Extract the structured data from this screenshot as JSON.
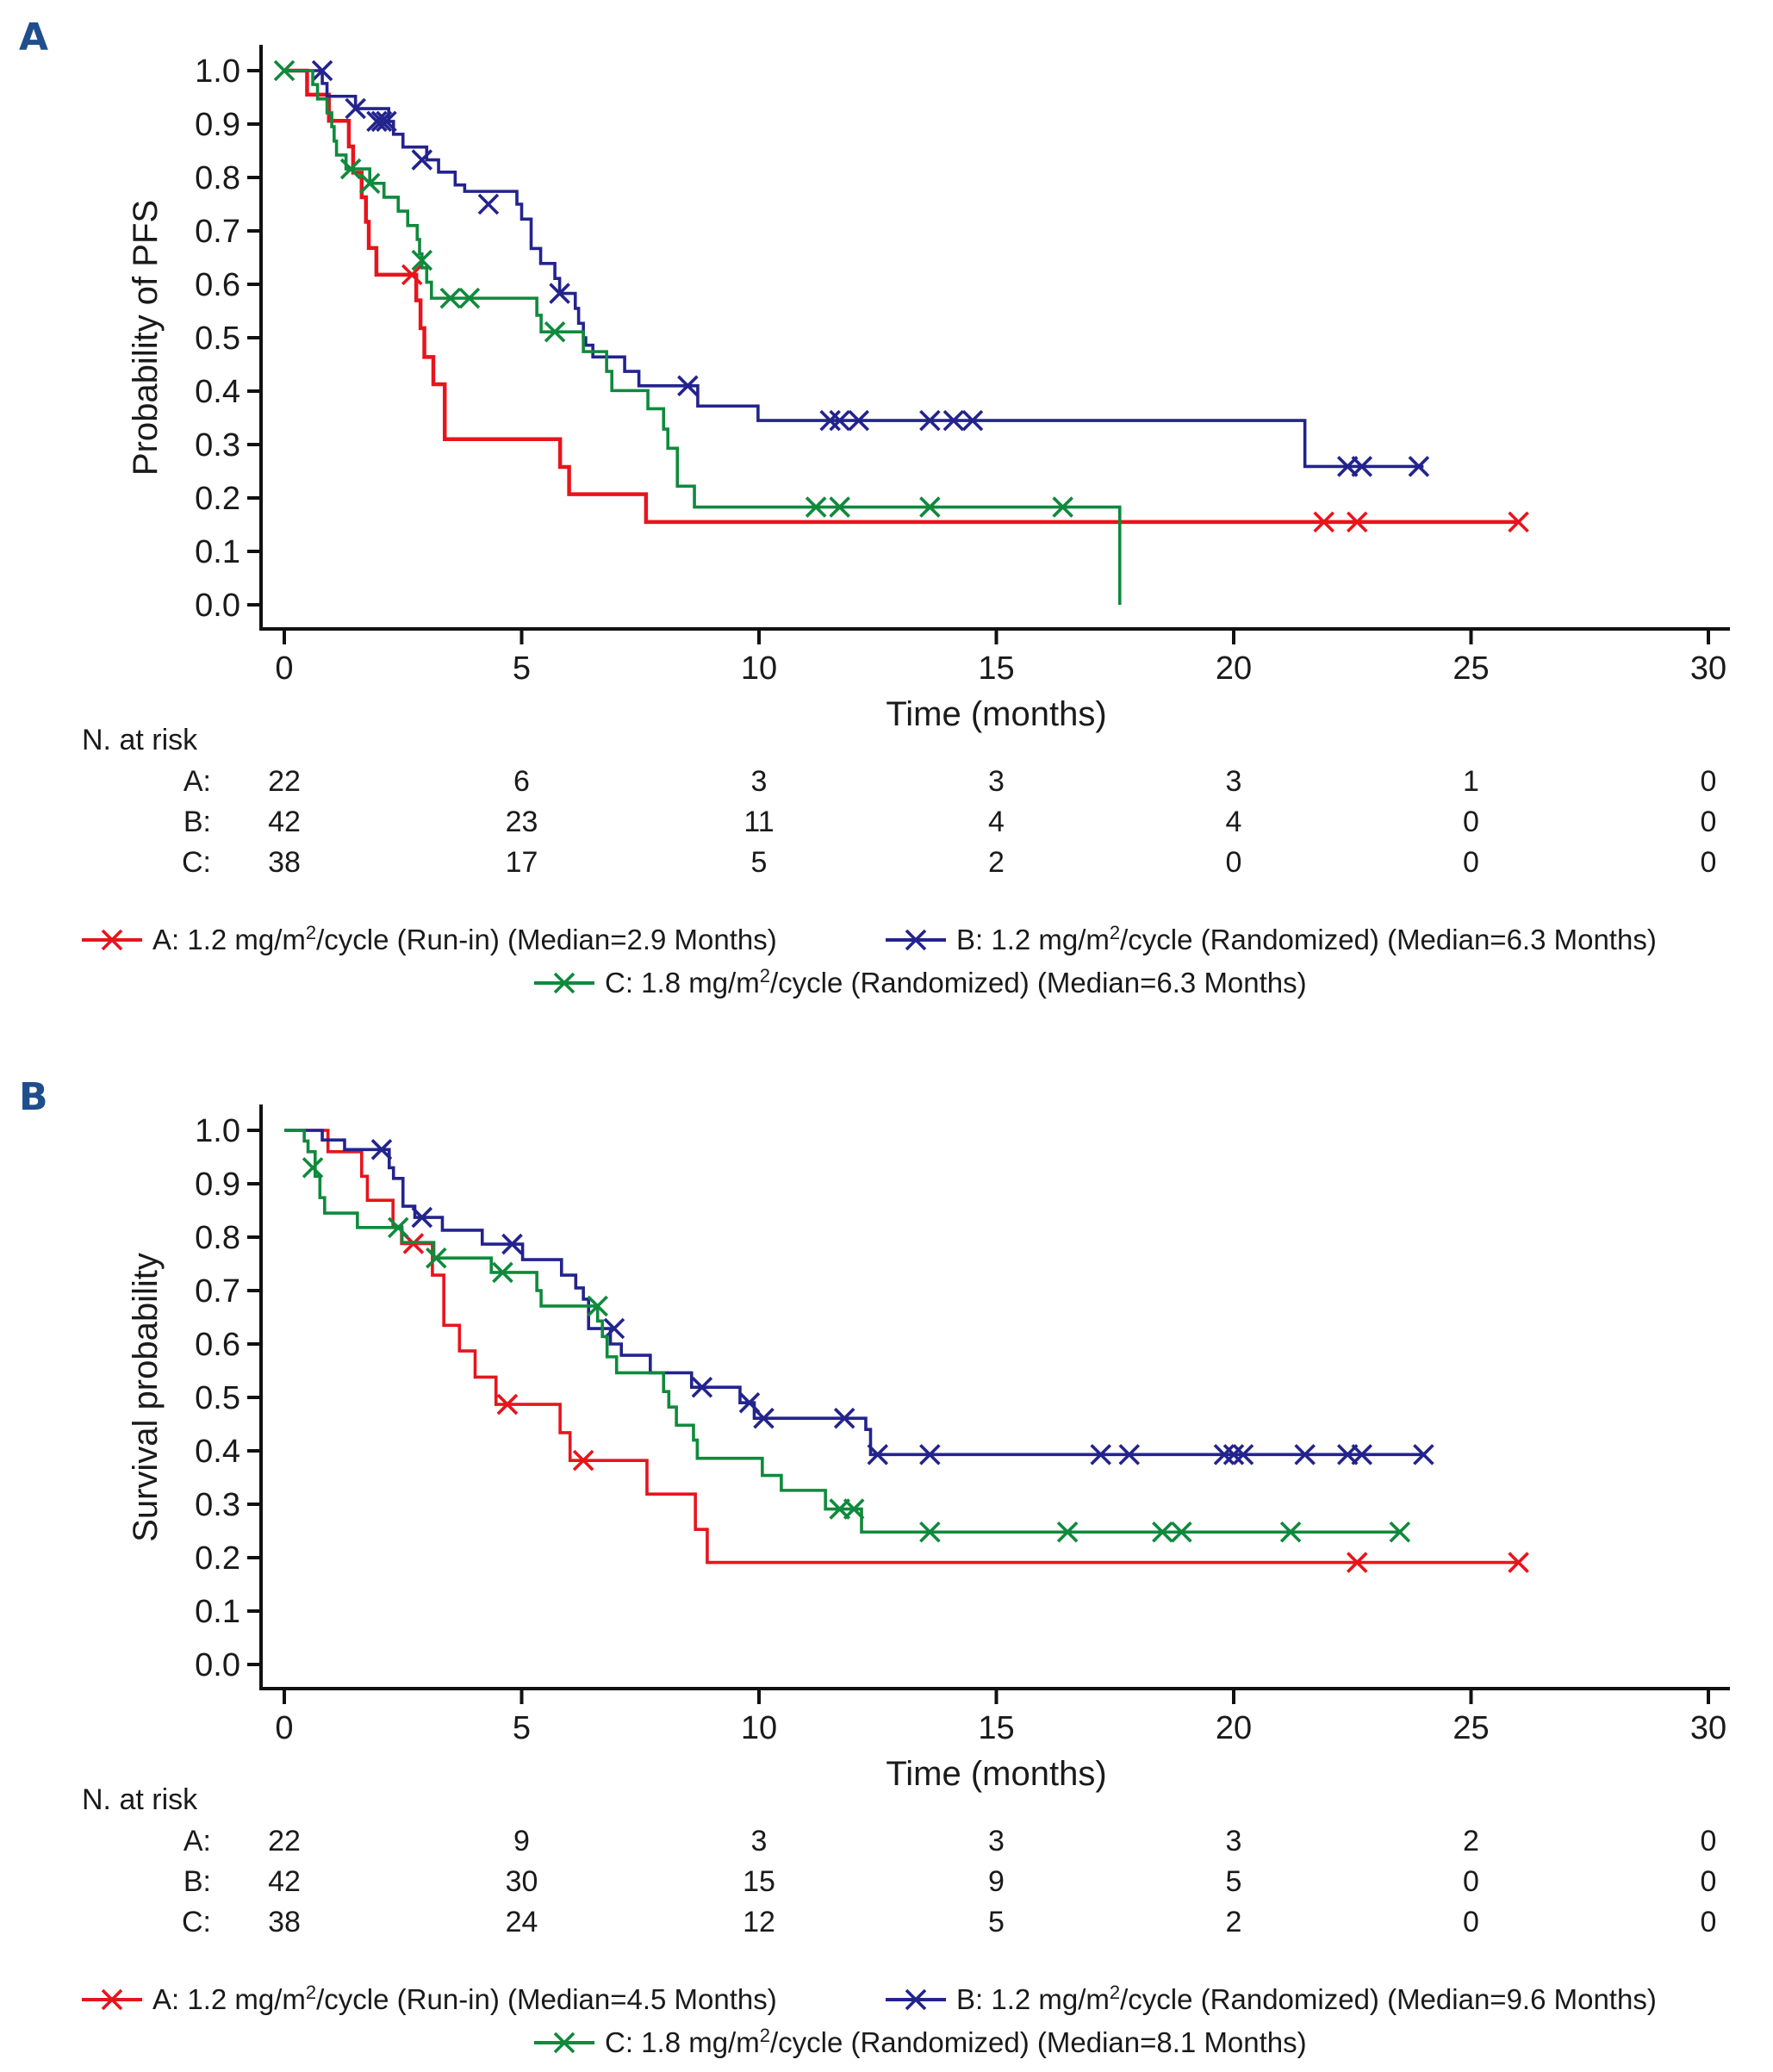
{
  "figure": {
    "panels": [
      "A",
      "B"
    ]
  },
  "chart_data": [
    {
      "id": "A",
      "panel_label": "A",
      "type": "line",
      "subtype": "kaplan-meier step",
      "title": "",
      "xlabel": "Time (months)",
      "ylabel": "Probability of PFS",
      "xlim": [
        0,
        30
      ],
      "ylim": [
        0.0,
        1.0
      ],
      "xticks": [
        "0",
        "5",
        "10",
        "15",
        "20",
        "25",
        "30"
      ],
      "yticks": [
        "0.0",
        "0.1",
        "0.2",
        "0.3",
        "0.4",
        "0.5",
        "0.6",
        "0.7",
        "0.8",
        "0.9",
        "1.0"
      ],
      "grid": false,
      "legend_position": "bottom",
      "series": [
        {
          "key": "A",
          "name": "A: 1.2 mg/m²/cycle (Run-in) (Median=2.9 Months)",
          "legend_prefix": "A: 1.2 mg/m",
          "legend_sup": "2",
          "legend_suffix": "/cycle (Run-in) (Median=2.9 Months)",
          "color": "#e8141c",
          "steps": [
            [
              0,
              1.0
            ],
            [
              0.48,
              0.955
            ],
            [
              0.94,
              0.906
            ],
            [
              1.36,
              0.858
            ],
            [
              1.45,
              0.809
            ],
            [
              1.63,
              0.763
            ],
            [
              1.72,
              0.717
            ],
            [
              1.78,
              0.668
            ],
            [
              1.94,
              0.618
            ],
            [
              2.78,
              0.57
            ],
            [
              2.87,
              0.518
            ],
            [
              2.95,
              0.464
            ],
            [
              3.14,
              0.413
            ],
            [
              3.38,
              0.31
            ],
            [
              5.81,
              0.258
            ],
            [
              6.0,
              0.207
            ],
            [
              7.62,
              0.155
            ]
          ],
          "end": 26.0,
          "censors": [
            [
              2.69,
              0.618
            ],
            [
              21.9,
              0.155
            ],
            [
              22.6,
              0.155
            ],
            [
              26.0,
              0.155
            ]
          ]
        },
        {
          "key": "B",
          "name": "B: 1.2 mg/m²/cycle (Randomized) (Median=6.3 Months)",
          "legend_prefix": "B: 1.2 mg/m",
          "legend_sup": "2",
          "legend_suffix": "/cycle (Randomized) (Median=6.3 Months)",
          "color": "#23238e",
          "steps": [
            [
              0,
              1.0
            ],
            [
              0.8,
              0.976
            ],
            [
              0.9,
              0.952
            ],
            [
              1.5,
              0.929
            ],
            [
              2.2,
              0.905
            ],
            [
              2.3,
              0.881
            ],
            [
              2.5,
              0.857
            ],
            [
              3.0,
              0.833
            ],
            [
              3.25,
              0.81
            ],
            [
              3.6,
              0.786
            ],
            [
              3.8,
              0.774
            ],
            [
              4.9,
              0.75
            ],
            [
              5.0,
              0.722
            ],
            [
              5.2,
              0.667
            ],
            [
              5.4,
              0.639
            ],
            [
              5.7,
              0.611
            ],
            [
              5.8,
              0.583
            ],
            [
              6.13,
              0.555
            ],
            [
              6.2,
              0.527
            ],
            [
              6.3,
              0.5
            ],
            [
              6.35,
              0.486
            ],
            [
              6.5,
              0.464
            ],
            [
              7.17,
              0.437
            ],
            [
              7.47,
              0.41
            ],
            [
              8.71,
              0.372
            ],
            [
              9.98,
              0.345
            ],
            [
              21.5,
              0.259
            ]
          ],
          "end": 24.0,
          "censors": [
            [
              0.8,
              1.0
            ],
            [
              1.5,
              0.929
            ],
            [
              1.95,
              0.905
            ],
            [
              2.05,
              0.905
            ],
            [
              2.15,
              0.905
            ],
            [
              2.9,
              0.833
            ],
            [
              4.3,
              0.75
            ],
            [
              5.8,
              0.583
            ],
            [
              8.5,
              0.41
            ],
            [
              11.5,
              0.345
            ],
            [
              11.7,
              0.345
            ],
            [
              12.1,
              0.345
            ],
            [
              13.6,
              0.345
            ],
            [
              14.1,
              0.345
            ],
            [
              14.5,
              0.345
            ],
            [
              22.4,
              0.259
            ],
            [
              22.7,
              0.259
            ],
            [
              23.9,
              0.259
            ]
          ]
        },
        {
          "key": "C",
          "name": "C: 1.8 mg/m²/cycle (Randomized) (Median=6.3 Months)",
          "legend_prefix": "C: 1.8 mg/m",
          "legend_sup": "2",
          "legend_suffix": "/cycle (Randomized) (Median=6.3 Months)",
          "color": "#0f8a3c",
          "steps": [
            [
              0,
              1.0
            ],
            [
              0.6,
              0.974
            ],
            [
              0.7,
              0.947
            ],
            [
              0.9,
              0.921
            ],
            [
              1.0,
              0.895
            ],
            [
              1.05,
              0.868
            ],
            [
              1.1,
              0.842
            ],
            [
              1.3,
              0.816
            ],
            [
              1.8,
              0.789
            ],
            [
              2.1,
              0.763
            ],
            [
              2.4,
              0.737
            ],
            [
              2.6,
              0.71
            ],
            [
              2.8,
              0.684
            ],
            [
              2.85,
              0.657
            ],
            [
              2.9,
              0.631
            ],
            [
              3.0,
              0.604
            ],
            [
              3.1,
              0.574
            ],
            [
              5.32,
              0.542
            ],
            [
              5.41,
              0.511
            ],
            [
              6.3,
              0.474
            ],
            [
              6.79,
              0.437
            ],
            [
              6.9,
              0.401
            ],
            [
              7.66,
              0.367
            ],
            [
              7.99,
              0.329
            ],
            [
              8.08,
              0.293
            ],
            [
              8.28,
              0.222
            ],
            [
              8.64,
              0.183
            ],
            [
              17.6,
              0.0
            ]
          ],
          "end": 17.6,
          "censors": [
            [
              0.0,
              1.0
            ],
            [
              1.4,
              0.816
            ],
            [
              1.8,
              0.789
            ],
            [
              2.9,
              0.645
            ],
            [
              3.5,
              0.574
            ],
            [
              3.9,
              0.574
            ],
            [
              5.7,
              0.511
            ],
            [
              11.2,
              0.183
            ],
            [
              11.7,
              0.183
            ],
            [
              13.6,
              0.183
            ],
            [
              16.4,
              0.183
            ]
          ]
        }
      ],
      "risk_table": {
        "title": "N. at risk",
        "times": [
          0,
          5,
          10,
          15,
          20,
          25,
          30
        ],
        "rows": [
          {
            "label": "A:",
            "values": [
              "22",
              "6",
              "3",
              "3",
              "3",
              "1",
              "0"
            ]
          },
          {
            "label": "B:",
            "values": [
              "42",
              "23",
              "11",
              "4",
              "4",
              "0",
              "0"
            ]
          },
          {
            "label": "C:",
            "values": [
              "38",
              "17",
              "5",
              "2",
              "0",
              "0",
              "0"
            ]
          }
        ]
      }
    },
    {
      "id": "B",
      "panel_label": "B",
      "type": "line",
      "subtype": "kaplan-meier step",
      "title": "",
      "xlabel": "Time (months)",
      "ylabel": "Survival probability",
      "xlim": [
        0,
        30
      ],
      "ylim": [
        0.0,
        1.0
      ],
      "xticks": [
        "0",
        "5",
        "10",
        "15",
        "20",
        "25",
        "30"
      ],
      "yticks": [
        "0.0",
        "0.1",
        "0.2",
        "0.3",
        "0.4",
        "0.5",
        "0.6",
        "0.7",
        "0.8",
        "0.9",
        "1.0"
      ],
      "grid": false,
      "legend_position": "bottom",
      "series": [
        {
          "key": "A",
          "name": "A: 1.2 mg/m²/cycle (Run-in) (Median=4.5 Months)",
          "legend_prefix": "A: 1.2 mg/m",
          "legend_sup": "2",
          "legend_suffix": "/cycle (Run-in) (Median=4.5 Months)",
          "color": "#e8141c",
          "steps": [
            [
              0,
              1.0
            ],
            [
              0.92,
              0.96
            ],
            [
              1.63,
              0.914
            ],
            [
              1.75,
              0.869
            ],
            [
              2.29,
              0.82
            ],
            [
              2.47,
              0.788
            ],
            [
              3.12,
              0.729
            ],
            [
              3.36,
              0.635
            ],
            [
              3.69,
              0.587
            ],
            [
              4.02,
              0.538
            ],
            [
              4.46,
              0.487
            ],
            [
              5.81,
              0.434
            ],
            [
              6.02,
              0.382
            ],
            [
              7.64,
              0.319
            ],
            [
              8.66,
              0.253
            ],
            [
              8.91,
              0.191
            ]
          ],
          "end": 26.0,
          "censors": [
            [
              2.72,
              0.788
            ],
            [
              4.7,
              0.487
            ],
            [
              6.3,
              0.382
            ],
            [
              22.6,
              0.191
            ],
            [
              26.0,
              0.191
            ]
          ]
        },
        {
          "key": "B",
          "name": "B: 1.2 mg/m²/cycle (Randomized) (Median=9.6 Months)",
          "legend_prefix": "B: 1.2 mg/m",
          "legend_sup": "2",
          "legend_suffix": "/cycle (Randomized) (Median=9.6 Months)",
          "color": "#23238e",
          "steps": [
            [
              0,
              1.0
            ],
            [
              0.8,
              0.982
            ],
            [
              1.27,
              0.964
            ],
            [
              2.21,
              0.93
            ],
            [
              2.3,
              0.91
            ],
            [
              2.5,
              0.858
            ],
            [
              2.75,
              0.837
            ],
            [
              3.33,
              0.813
            ],
            [
              4.17,
              0.787
            ],
            [
              5.02,
              0.758
            ],
            [
              5.84,
              0.729
            ],
            [
              6.14,
              0.705
            ],
            [
              6.3,
              0.684
            ],
            [
              6.41,
              0.629
            ],
            [
              6.87,
              0.6
            ],
            [
              7.1,
              0.579
            ],
            [
              7.71,
              0.546
            ],
            [
              8.58,
              0.519
            ],
            [
              9.6,
              0.49
            ],
            [
              9.9,
              0.461
            ],
            [
              12.25,
              0.44
            ],
            [
              12.35,
              0.393
            ]
          ],
          "end": 24.0,
          "censors": [
            [
              2.05,
              0.964
            ],
            [
              2.9,
              0.837
            ],
            [
              4.8,
              0.787
            ],
            [
              6.95,
              0.629
            ],
            [
              8.8,
              0.519
            ],
            [
              9.8,
              0.49
            ],
            [
              10.1,
              0.461
            ],
            [
              11.8,
              0.461
            ],
            [
              12.5,
              0.393
            ],
            [
              13.6,
              0.393
            ],
            [
              17.2,
              0.393
            ],
            [
              17.8,
              0.393
            ],
            [
              19.8,
              0.393
            ],
            [
              20.0,
              0.393
            ],
            [
              20.2,
              0.393
            ],
            [
              21.5,
              0.393
            ],
            [
              22.4,
              0.393
            ],
            [
              22.7,
              0.393
            ],
            [
              24.0,
              0.393
            ]
          ]
        },
        {
          "key": "C",
          "name": "C: 1.8 mg/m²/cycle (Randomized) (Median=8.1 Months)",
          "legend_prefix": "C: 1.8 mg/m",
          "legend_sup": "2",
          "legend_suffix": "/cycle (Randomized) (Median=8.1 Months)",
          "color": "#0f8a3c",
          "steps": [
            [
              0,
              1.0
            ],
            [
              0.42,
              0.98
            ],
            [
              0.5,
              0.96
            ],
            [
              0.65,
              0.914
            ],
            [
              0.75,
              0.874
            ],
            [
              0.85,
              0.845
            ],
            [
              1.54,
              0.818
            ],
            [
              2.48,
              0.79
            ],
            [
              3.15,
              0.761
            ],
            [
              4.36,
              0.734
            ],
            [
              5.32,
              0.7
            ],
            [
              5.41,
              0.671
            ],
            [
              6.6,
              0.643
            ],
            [
              6.7,
              0.614
            ],
            [
              6.8,
              0.576
            ],
            [
              7.0,
              0.546
            ],
            [
              7.99,
              0.511
            ],
            [
              8.1,
              0.482
            ],
            [
              8.26,
              0.448
            ],
            [
              8.62,
              0.42
            ],
            [
              8.7,
              0.386
            ],
            [
              10.07,
              0.354
            ],
            [
              10.47,
              0.326
            ],
            [
              11.4,
              0.291
            ],
            [
              12.16,
              0.248
            ]
          ],
          "end": 23.5,
          "censors": [
            [
              0.6,
              0.93
            ],
            [
              2.4,
              0.818
            ],
            [
              3.2,
              0.761
            ],
            [
              4.6,
              0.734
            ],
            [
              6.6,
              0.671
            ],
            [
              11.7,
              0.291
            ],
            [
              12.0,
              0.291
            ],
            [
              13.6,
              0.248
            ],
            [
              16.5,
              0.248
            ],
            [
              18.5,
              0.248
            ],
            [
              18.9,
              0.248
            ],
            [
              21.2,
              0.248
            ],
            [
              23.5,
              0.248
            ]
          ]
        }
      ],
      "risk_table": {
        "title": "N. at risk",
        "times": [
          0,
          5,
          10,
          15,
          20,
          25,
          30
        ],
        "rows": [
          {
            "label": "A:",
            "values": [
              "22",
              "9",
              "3",
              "3",
              "3",
              "2",
              "0"
            ]
          },
          {
            "label": "B:",
            "values": [
              "42",
              "30",
              "15",
              "9",
              "5",
              "0",
              "0"
            ]
          },
          {
            "label": "C:",
            "values": [
              "38",
              "24",
              "12",
              "5",
              "2",
              "0",
              "0"
            ]
          }
        ]
      }
    }
  ]
}
